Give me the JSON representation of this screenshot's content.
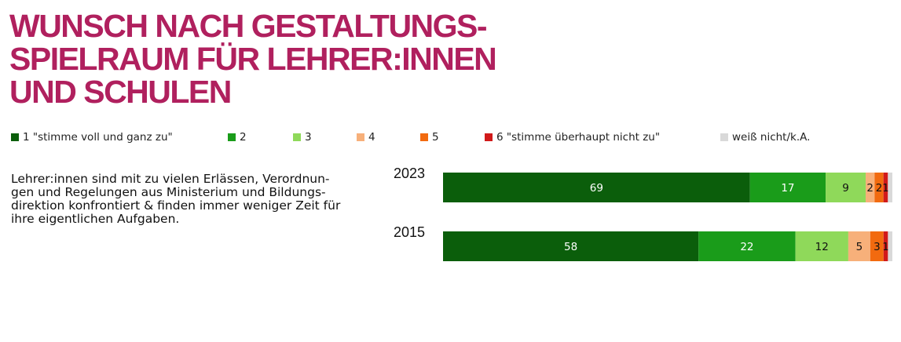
{
  "title_lines": [
    "WUNSCH NACH GESTALTUNGS-",
    "SPIELRAUM FÜR LEHRER:INNEN",
    "UND SCHULEN"
  ],
  "statement_lines": [
    "Lehrer:innen sind mit zu vielen Erlässen, Verordnun-",
    "gen und Regelungen aus Ministerium und Bildungs-",
    "direktion konfrontiert & finden immer weniger Zeit für",
    "ihre eigentlichen Aufgaben."
  ],
  "colors": {
    "title": "#b0205e",
    "c1": "#0b5e0b",
    "c2": "#1a9c1a",
    "c3": "#8fd95a",
    "c4": "#f7b07a",
    "c5": "#f26a0f",
    "c6": "#d11a1a",
    "c7": "#d9d9d9"
  },
  "chart_data": {
    "type": "bar",
    "orientation": "horizontal",
    "stacked": true,
    "percent": true,
    "categories": [
      "2023",
      "2015"
    ],
    "series": [
      {
        "name": "1 \"stimme voll und ganz zu\"",
        "color": "#0b5e0b",
        "values": [
          69,
          58
        ],
        "labels": [
          "69",
          "58"
        ]
      },
      {
        "name": "2",
        "color": "#1a9c1a",
        "values": [
          17,
          22
        ],
        "labels": [
          "17",
          "22"
        ]
      },
      {
        "name": "3",
        "color": "#8fd95a",
        "values": [
          9,
          12
        ],
        "labels": [
          "9",
          "12"
        ]
      },
      {
        "name": "4",
        "color": "#f7b07a",
        "values": [
          2,
          5
        ],
        "labels": [
          "2",
          "5"
        ]
      },
      {
        "name": "5",
        "color": "#f26a0f",
        "values": [
          2,
          3
        ],
        "labels": [
          "2",
          "3"
        ]
      },
      {
        "name": "6 \"stimme überhaupt nicht zu\"",
        "color": "#d11a1a",
        "values": [
          1,
          1
        ],
        "labels": [
          "1",
          "1"
        ]
      },
      {
        "name": "weiß nicht/k.A.",
        "color": "#d9d9d9",
        "values": [
          1,
          1
        ],
        "labels": [
          "",
          ""
        ]
      }
    ],
    "legend_position": "top",
    "grid": false
  }
}
